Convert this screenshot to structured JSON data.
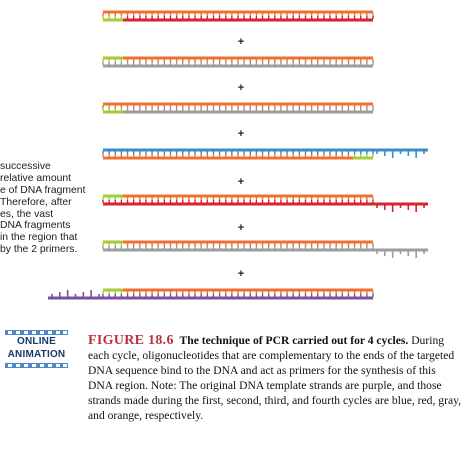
{
  "colors": {
    "purple": "#7b4fa0",
    "blue": "#3a8cc8",
    "red": "#d6232e",
    "gray": "#9c9c9c",
    "orange": "#ee7035",
    "primer": "#a6cc3b",
    "plus": "#222222",
    "fig_label": "#b8333a",
    "badge_blue": "#4f86c6"
  },
  "plus_sign": "+",
  "side_text_lines": [
    "successive",
    "relative amount",
    "e of DNA fragment",
    "Therefore, after",
    "es, the vast",
    "DNA fragments",
    "in the region that",
    "by the 2 primers."
  ],
  "badge": {
    "line1": "ONLINE",
    "line2": "ANIMATION"
  },
  "caption": {
    "label": "FIGURE 18.6",
    "title": "The technique of PCR carried out for 4 cycles.",
    "body": "During each cycle, oligonucleotides that are complementary to the ends of the targeted DNA sequence bind to the DNA and act as primers for the synthesis of this DNA region. Note: The original DNA template strands are purple, and those strands made during the first, second, third, and fourth cycles are blue, red, gray, and orange, respectively."
  },
  "duplexes": [
    {
      "top": "orange",
      "bottom": "red",
      "primer": "bottom-left",
      "top_extension": "none",
      "bottom_extension": "none"
    },
    {
      "top": "orange",
      "bottom": "gray",
      "primer": "top-left",
      "top_extension": "none",
      "bottom_extension": "none"
    },
    {
      "top": "orange",
      "bottom": "gray",
      "primer": "bottom-left",
      "top_extension": "none",
      "bottom_extension": "none"
    },
    {
      "top": "blue",
      "bottom": "orange",
      "primer": "bottom-right",
      "top_extension": "right",
      "bottom_extension": "none"
    },
    {
      "top": "orange",
      "bottom": "red",
      "primer": "top-left",
      "top_extension": "none",
      "bottom_extension": "right"
    },
    {
      "top": "orange",
      "bottom": "gray",
      "primer": "top-left",
      "top_extension": "none",
      "bottom_extension": "right"
    },
    {
      "top": "orange",
      "bottom": "purple",
      "primer": "top-left",
      "top_extension": "none",
      "bottom_extension": "left"
    }
  ]
}
